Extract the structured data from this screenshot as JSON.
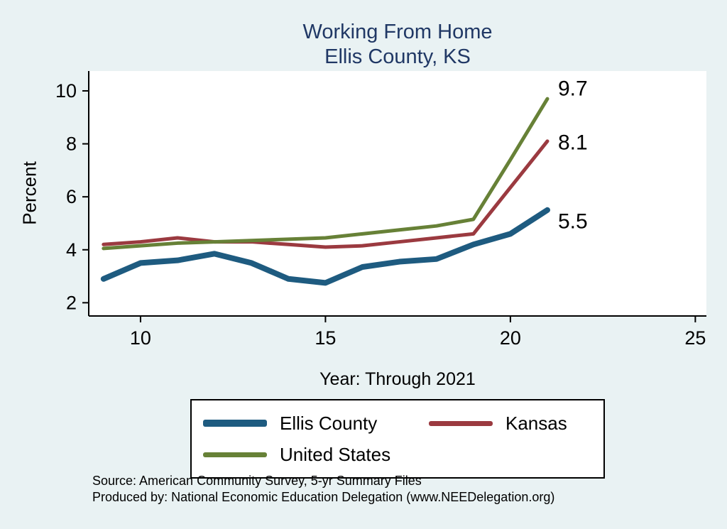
{
  "page": {
    "background": "#e9f2f3"
  },
  "title": {
    "line1": "Working From Home",
    "line2": "Ellis County, KS",
    "color": "#203865"
  },
  "chart_data": {
    "type": "line",
    "title": "Working From Home — Ellis County, KS",
    "xlabel": "Year: Through 2021",
    "ylabel": "Percent",
    "x": [
      9,
      10,
      11,
      12,
      13,
      14,
      15,
      16,
      17,
      18,
      19,
      20,
      21
    ],
    "series": [
      {
        "name": "Ellis County",
        "color": "#1e5b80",
        "width": 8,
        "end_label": "5.5",
        "values": [
          2.9,
          3.5,
          3.6,
          3.85,
          3.5,
          2.9,
          2.75,
          3.35,
          3.55,
          3.65,
          4.2,
          4.6,
          5.5
        ]
      },
      {
        "name": "Kansas",
        "color": "#9b3a40",
        "width": 5,
        "end_label": "8.1",
        "values": [
          4.2,
          4.3,
          4.45,
          4.3,
          4.3,
          4.2,
          4.1,
          4.15,
          4.3,
          4.45,
          4.6,
          6.35,
          8.1
        ]
      },
      {
        "name": "United States",
        "color": "#678137",
        "width": 5,
        "end_label": "9.7",
        "values": [
          4.05,
          4.15,
          4.25,
          4.3,
          4.35,
          4.4,
          4.45,
          4.6,
          4.75,
          4.9,
          5.15,
          7.4,
          9.7
        ]
      }
    ],
    "xlim": [
      8.6,
      25.3
    ],
    "ylim": [
      1.5,
      10.75
    ],
    "xticks": [
      10,
      15,
      20,
      25
    ],
    "yticks": [
      2,
      4,
      6,
      8,
      10
    ],
    "grid": false,
    "legend_position": "bottom"
  },
  "legend": {
    "items": [
      {
        "label": "Ellis County"
      },
      {
        "label": "Kansas"
      },
      {
        "label": "United States"
      }
    ]
  },
  "footer": {
    "line1": "Source: American Community Survey, 5-yr Summary Files",
    "line2": "Produced by: National Economic Education Delegation (www.NEEDelegation.org)"
  }
}
